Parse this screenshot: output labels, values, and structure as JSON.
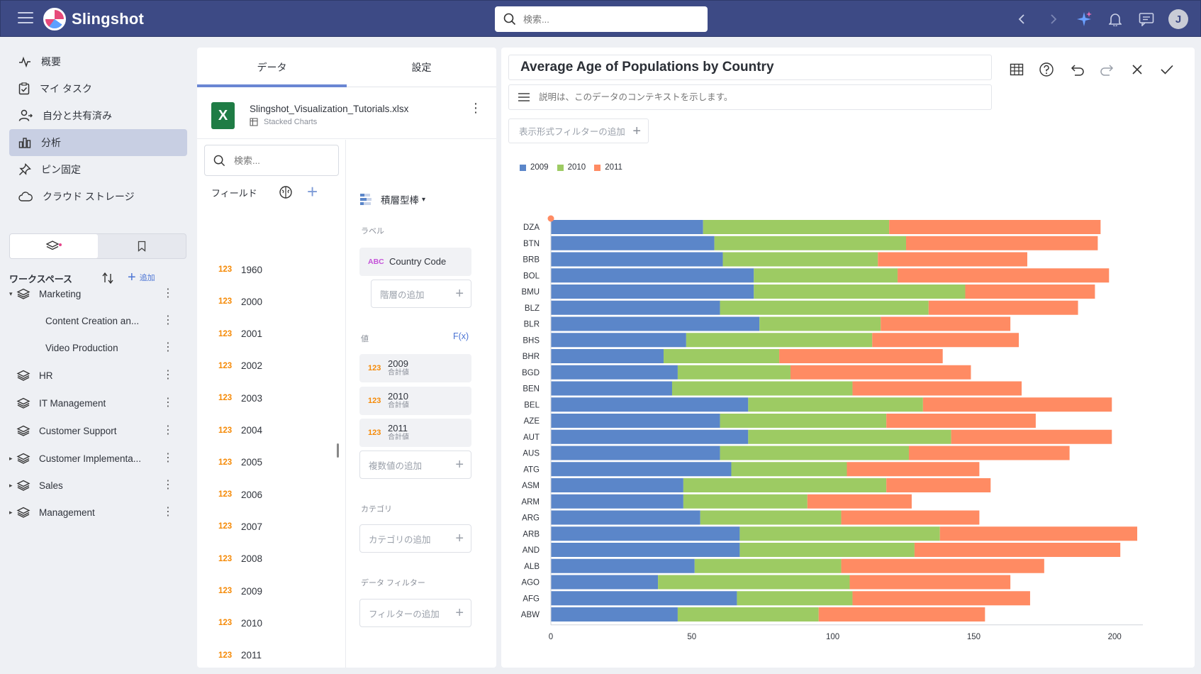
{
  "app": {
    "name": "Slingshot",
    "search_placeholder": "検索...",
    "avatar": "J"
  },
  "nav": [
    {
      "label": "概要",
      "icon": "activity-icon"
    },
    {
      "label": "マイ タスク",
      "icon": "clipboard-check-icon"
    },
    {
      "label": "自分と共有済み",
      "icon": "user-share-icon"
    },
    {
      "label": "分析",
      "icon": "bar-chart-icon",
      "active": true
    },
    {
      "label": "ピン固定",
      "icon": "pin-icon"
    },
    {
      "label": "クラウド ストレージ",
      "icon": "cloud-icon"
    }
  ],
  "workspace": {
    "title": "ワークスペース",
    "add_label": "追加",
    "items": [
      {
        "label": "Marketing",
        "caret": "▾",
        "indent": 0
      },
      {
        "label": "Content Creation an...",
        "caret": "",
        "indent": 2
      },
      {
        "label": "Video Production",
        "caret": "",
        "indent": 2
      },
      {
        "label": "HR",
        "caret": "",
        "indent": 0
      },
      {
        "label": "IT Management",
        "caret": "",
        "indent": 0
      },
      {
        "label": "Customer Support",
        "caret": "",
        "indent": 0
      },
      {
        "label": "Customer Implementa...",
        "caret": "▸",
        "indent": 0
      },
      {
        "label": "Sales",
        "caret": "▸",
        "indent": 0
      },
      {
        "label": "Management",
        "caret": "▸",
        "indent": 0
      }
    ]
  },
  "editor": {
    "tabs": [
      "データ",
      "設定"
    ],
    "file_name": "Slingshot_Visualization_Tutorials.xlsx",
    "sheet_name": "Stacked Charts",
    "field_search_placeholder": "検索...",
    "fields_label": "フィールド",
    "fields": [
      {
        "type": "123",
        "name": "1960"
      },
      {
        "type": "123",
        "name": "2000"
      },
      {
        "type": "123",
        "name": "2001"
      },
      {
        "type": "123",
        "name": "2002"
      },
      {
        "type": "123",
        "name": "2003"
      },
      {
        "type": "123",
        "name": "2004"
      },
      {
        "type": "123",
        "name": "2005"
      },
      {
        "type": "123",
        "name": "2006"
      },
      {
        "type": "123",
        "name": "2007"
      },
      {
        "type": "123",
        "name": "2008"
      },
      {
        "type": "123",
        "name": "2009"
      },
      {
        "type": "123",
        "name": "2010"
      },
      {
        "type": "123",
        "name": "2011"
      }
    ],
    "chart_type": "積層型棒",
    "label_section": "ラベル",
    "label_field": {
      "type": "ABC",
      "name": "Country Code"
    },
    "add_hierarchy": "階層の追加",
    "values_section": "値",
    "fx_label": "F(x)",
    "values": [
      {
        "type": "123",
        "name": "2009",
        "agg": "合計値"
      },
      {
        "type": "123",
        "name": "2010",
        "agg": "合計値"
      },
      {
        "type": "123",
        "name": "2011",
        "agg": "合計値"
      }
    ],
    "add_values": "複数値の追加",
    "category_section": "カテゴリ",
    "add_category": "カテゴリの追加",
    "filter_section": "データ フィルター",
    "add_filter": "フィルターの追加"
  },
  "viz": {
    "title": "Average Age of Populations by Country",
    "description_placeholder": "説明は、このデータのコンテキストを示します。",
    "add_display_filter": "表示形式フィルターの追加"
  },
  "chart_data": {
    "type": "bar",
    "orientation": "horizontal",
    "stacked": true,
    "categories": [
      "DZA",
      "BTN",
      "BRB",
      "BOL",
      "BMU",
      "BLZ",
      "BLR",
      "BHS",
      "BHR",
      "BGD",
      "BEN",
      "BEL",
      "AZE",
      "AUT",
      "AUS",
      "ATG",
      "ASM",
      "ARM",
      "ARG",
      "ARB",
      "AND",
      "ALB",
      "AGO",
      "AFG",
      "ABW"
    ],
    "series": [
      {
        "name": "2009",
        "color": "#5b86c9",
        "values": [
          54,
          58,
          61,
          72,
          72,
          60,
          74,
          48,
          40,
          45,
          43,
          70,
          60,
          70,
          60,
          64,
          47,
          47,
          53,
          67,
          67,
          51,
          38,
          66,
          45
        ]
      },
      {
        "name": "2010",
        "color": "#9dcb63",
        "values": [
          66,
          68,
          55,
          51,
          75,
          74,
          43,
          66,
          41,
          40,
          64,
          62,
          59,
          72,
          67,
          41,
          72,
          44,
          50,
          71,
          62,
          52,
          68,
          41,
          50
        ]
      },
      {
        "name": "2011",
        "color": "#ff8b63",
        "values": [
          75,
          68,
          53,
          75,
          46,
          53,
          46,
          52,
          58,
          64,
          60,
          67,
          53,
          57,
          57,
          47,
          37,
          37,
          49,
          70,
          73,
          72,
          57,
          63,
          59
        ]
      }
    ],
    "xlim": [
      0,
      210
    ],
    "xticks": [
      0,
      50,
      100,
      150,
      200
    ],
    "legend": "top-left",
    "grid": false
  }
}
